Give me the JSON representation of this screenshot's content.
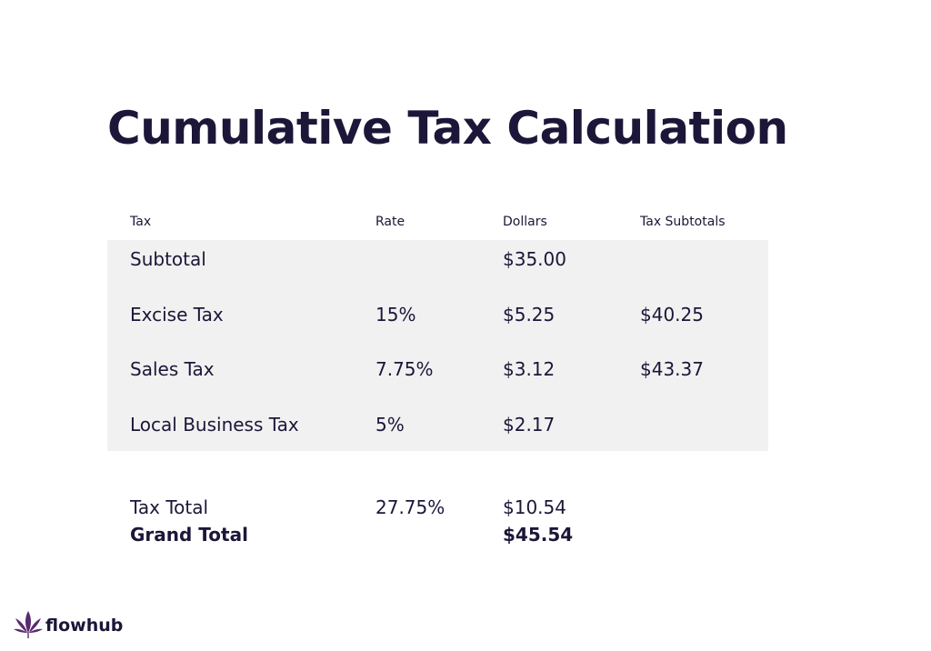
{
  "title": "Cumulative Tax Calculation",
  "table": {
    "headers": [
      "Tax",
      "Rate",
      "Dollars",
      "Tax Subtotals"
    ],
    "rows": [
      [
        "Subtotal",
        null,
        "$35.00",
        null
      ],
      [
        "Excise Tax",
        "15%",
        "$5.25",
        "$40.25"
      ],
      [
        "Sales Tax",
        "7.75%",
        "$3.12",
        "$43.37"
      ],
      [
        "Local Business Tax",
        "5%",
        "$2.17",
        null
      ]
    ],
    "totals": [
      [
        "Tax Total",
        "27.75%",
        "$10.54",
        null
      ],
      [
        "Grand Total",
        null,
        "$45.54",
        null
      ]
    ]
  },
  "logo": "flowhub"
}
